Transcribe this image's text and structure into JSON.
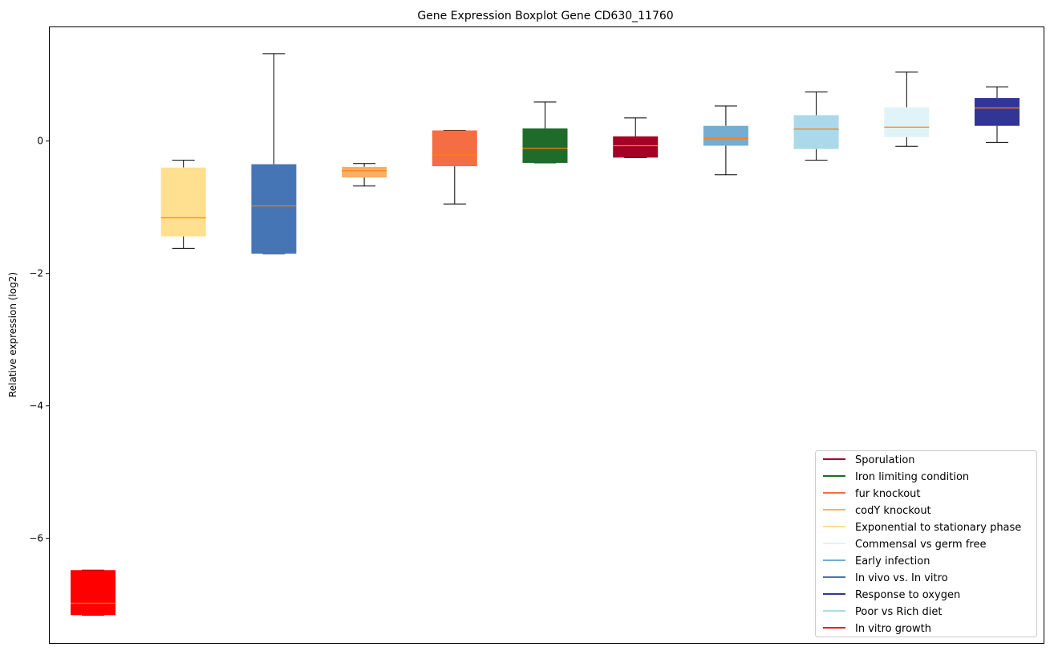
{
  "chart_data": {
    "type": "boxplot",
    "title": "Gene Expression Boxplot Gene CD630_11760",
    "xlabel": "",
    "ylabel": "Relative expression (log2)",
    "ylim": [
      -7.58,
      1.73
    ],
    "yticks": [
      0,
      -2,
      -4,
      -6
    ],
    "ytick_labels": [
      "0",
      "−2",
      "−4",
      "−6"
    ],
    "grid": false,
    "legend_position": "lower-right",
    "median_color": "#ff7f0e",
    "boxes": [
      {
        "name": "In vitro growth",
        "color": "#ff0000",
        "whislo": -7.16,
        "q1": -7.16,
        "med": -6.98,
        "q3": -6.48,
        "whishi": -6.48
      },
      {
        "name": "Exponential to stationary phase",
        "color": "#fee090",
        "whislo": -1.62,
        "q1": -1.44,
        "med": -1.16,
        "q3": -0.4,
        "whishi": -0.29
      },
      {
        "name": "In vivo vs. In vitro",
        "color": "#4575b4",
        "whislo": -1.7,
        "q1": -1.7,
        "med": -0.98,
        "q3": -0.35,
        "whishi": 1.32
      },
      {
        "name": "codY knockout",
        "color": "#fdae61",
        "whislo": -0.68,
        "q1": -0.55,
        "med": -0.45,
        "q3": -0.39,
        "whishi": -0.34
      },
      {
        "name": "fur knockout",
        "color": "#f46d43",
        "whislo": -0.95,
        "q1": -0.38,
        "med": -0.21,
        "q3": 0.16,
        "whishi": 0.16
      },
      {
        "name": "Iron limiting condition",
        "color": "#1e6b2a",
        "whislo": -0.33,
        "q1": -0.33,
        "med": -0.11,
        "q3": 0.19,
        "whishi": 0.59
      },
      {
        "name": "Sporulation",
        "color": "#a50026",
        "whislo": -0.25,
        "q1": -0.25,
        "med": -0.07,
        "q3": 0.07,
        "whishi": 0.35
      },
      {
        "name": "Early infection",
        "color": "#74add1",
        "whislo": -0.51,
        "q1": -0.07,
        "med": 0.04,
        "q3": 0.23,
        "whishi": 0.53
      },
      {
        "name": "Poor vs Rich diet",
        "color": "#abd9e9",
        "whislo": -0.29,
        "q1": -0.12,
        "med": 0.18,
        "q3": 0.39,
        "whishi": 0.74
      },
      {
        "name": "Commensal vs germ free",
        "color": "#e0f3f8",
        "whislo": -0.08,
        "q1": 0.06,
        "med": 0.21,
        "q3": 0.51,
        "whishi": 1.04
      },
      {
        "name": "Response to oxygen",
        "color": "#313695",
        "whislo": -0.02,
        "q1": 0.23,
        "med": 0.5,
        "q3": 0.65,
        "whishi": 0.82
      }
    ],
    "legend": [
      {
        "label": "Sporulation",
        "color": "#a50026"
      },
      {
        "label": "Iron limiting condition",
        "color": "#1e6b2a"
      },
      {
        "label": "fur knockout",
        "color": "#f46d43"
      },
      {
        "label": "codY knockout",
        "color": "#fdae61"
      },
      {
        "label": "Exponential to stationary phase",
        "color": "#fee090"
      },
      {
        "label": "Commensal vs germ free",
        "color": "#e0f3f8"
      },
      {
        "label": "Early infection",
        "color": "#74add1"
      },
      {
        "label": "In vivo vs. In vitro",
        "color": "#4575b4"
      },
      {
        "label": "Response to oxygen",
        "color": "#313695"
      },
      {
        "label": "Poor vs Rich diet",
        "color": "#abd9e9"
      },
      {
        "label": "In vitro growth",
        "color": "#ff0000"
      }
    ]
  }
}
